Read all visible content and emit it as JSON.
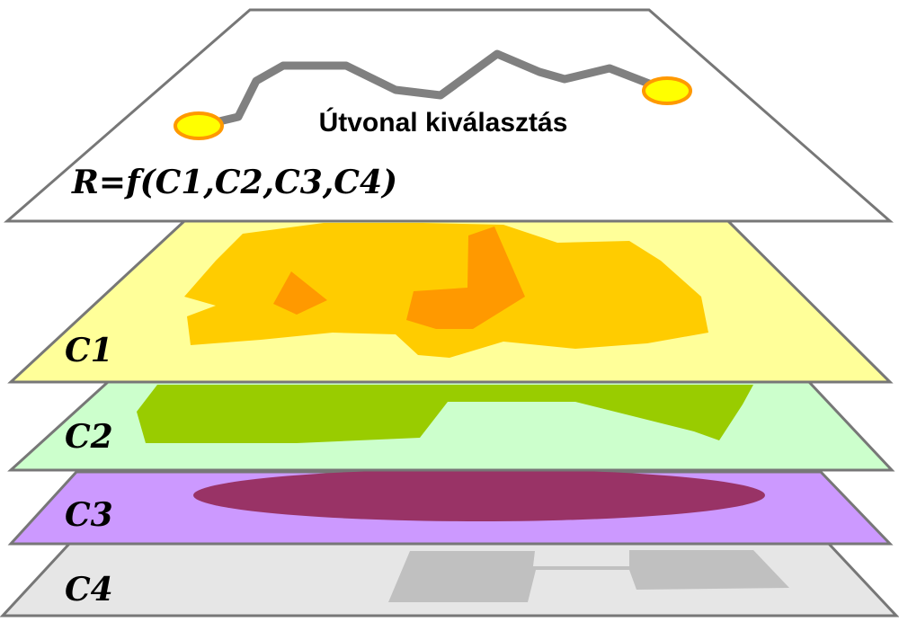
{
  "route_layer": {
    "title": "Útvonal kiválasztás",
    "formula": "R=f(C1,C2,C3,C4)"
  },
  "layers": [
    {
      "label": "C1"
    },
    {
      "label": "C2"
    },
    {
      "label": "C3"
    },
    {
      "label": "C4"
    }
  ],
  "colors": {
    "outline": "#777777",
    "route_plane": "#ffffff",
    "c1_plane": "#ffff99",
    "c1_region": "#ffcc00",
    "c1_core": "#ff9900",
    "c2_plane": "#ccffcc",
    "c2_region": "#99cc00",
    "c3_plane": "#cc99ff",
    "c3_region": "#993366",
    "c4_plane": "#e6e6e6",
    "c4_region": "#c0c0c0",
    "route_line": "#808080",
    "endpoint_fill": "#ffff00",
    "endpoint_stroke": "#ff9900"
  }
}
